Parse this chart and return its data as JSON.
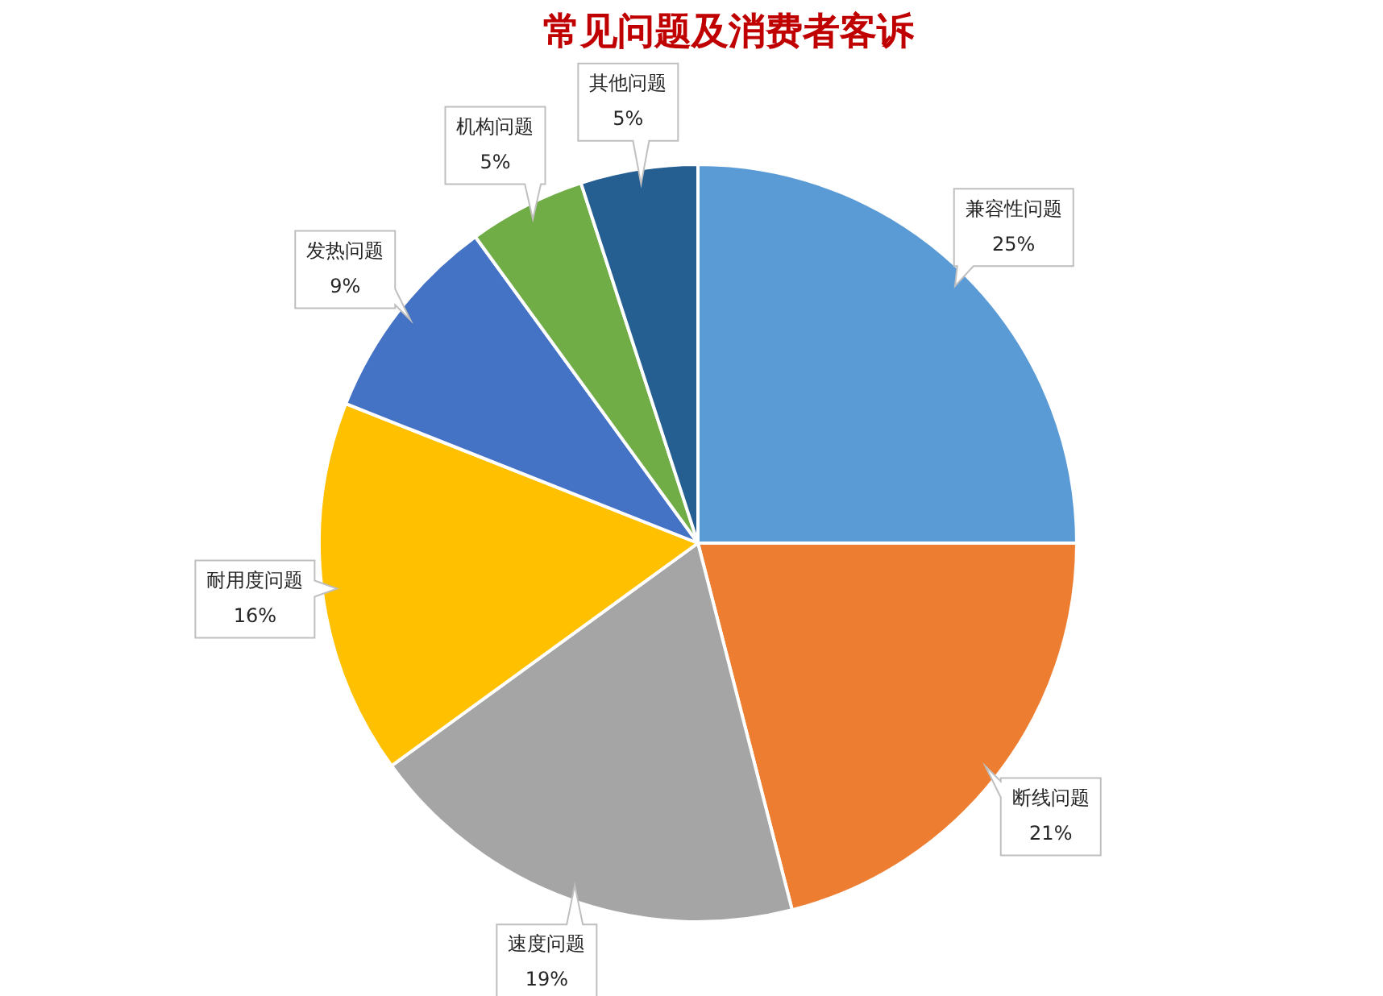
{
  "chart_data": {
    "type": "pie",
    "title": "常见问题及消费者客诉",
    "categories": [
      "兼容性问题",
      "断线问题",
      "速度问题",
      "耐用度问题",
      "发热问题",
      "机构问题",
      "其他问题"
    ],
    "values": [
      25,
      21,
      19,
      16,
      9,
      5,
      5
    ],
    "value_labels": [
      "25%",
      "21%",
      "19%",
      "16%",
      "9%",
      "5%",
      "5%"
    ],
    "colors": [
      "#5b9bd5",
      "#ed7d31",
      "#a5a5a5",
      "#ffc000",
      "#4472c4",
      "#70ad47",
      "#255e91"
    ]
  }
}
